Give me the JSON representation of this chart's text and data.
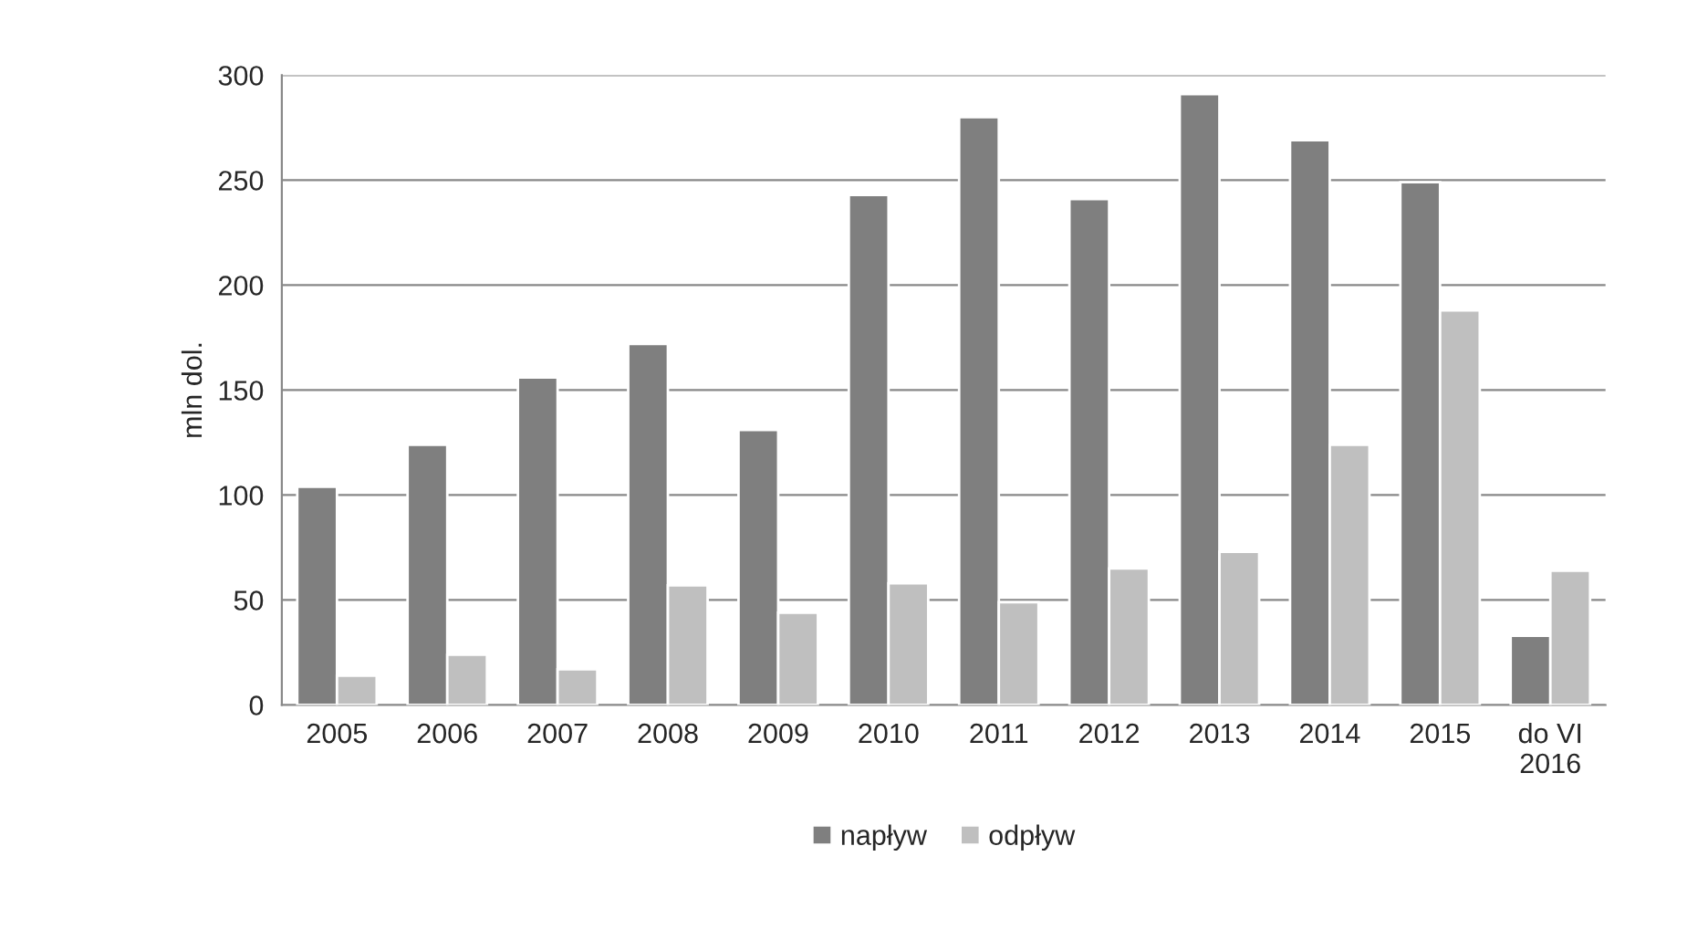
{
  "chart_data": {
    "type": "bar",
    "ylabel": "mln dol.",
    "categories": [
      "2005",
      "2006",
      "2007",
      "2008",
      "2009",
      "2010",
      "2011",
      "2012",
      "2013",
      "2014",
      "2015",
      "do VI\n2016"
    ],
    "series": [
      {
        "name": "napływ",
        "color": "#7f7f7f",
        "values": [
          104,
          124,
          156,
          172,
          131,
          243,
          280,
          241,
          291,
          269,
          249,
          33
        ]
      },
      {
        "name": "odpływ",
        "color": "#bfbfbf",
        "values": [
          14,
          24,
          17,
          57,
          44,
          58,
          49,
          65,
          73,
          124,
          188,
          64
        ]
      }
    ],
    "ylim": [
      0,
      300
    ],
    "yticks": [
      0,
      50,
      100,
      150,
      200,
      250,
      300
    ],
    "grid": "y",
    "legend": "bottom"
  }
}
